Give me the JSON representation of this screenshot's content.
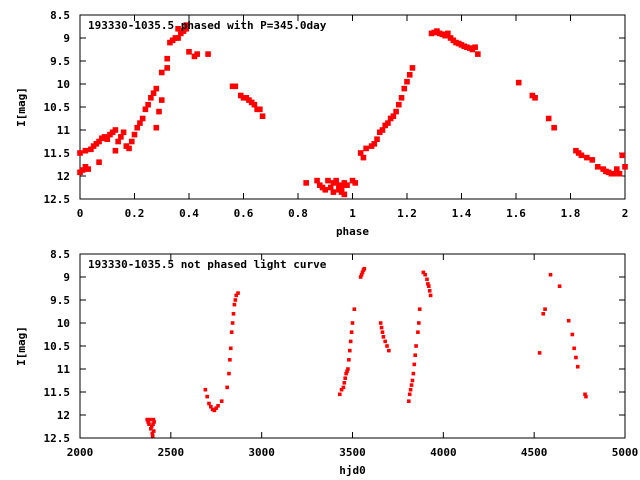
{
  "chart_data": [
    {
      "type": "scatter",
      "title": "193330-1035.5 phased with P=345.0day",
      "xlabel": "phase",
      "ylabel": "I[mag]",
      "xlim": [
        0,
        2
      ],
      "ylim": [
        12.5,
        8.5
      ],
      "y_inverted": true,
      "x_ticks": [
        0,
        0.2,
        0.4,
        0.6,
        0.8,
        1,
        1.2,
        1.4,
        1.6,
        1.8,
        2
      ],
      "x_tick_labels": [
        "0",
        "0.2",
        "0.4",
        "0.6",
        "0.8",
        "1",
        "1.2",
        "1.4",
        "1.6",
        "1.8",
        "2"
      ],
      "y_ticks": [
        8.5,
        9,
        9.5,
        10,
        10.5,
        11,
        11.5,
        12,
        12.5
      ],
      "y_tick_labels": [
        "8.5",
        "9",
        "9.5",
        "10",
        "10.5",
        "11",
        "11.5",
        "12",
        "12.5"
      ],
      "grid": false,
      "marker_color": "#ff0000",
      "points": [
        [
          0.0,
          11.92
        ],
        [
          0.01,
          11.87
        ],
        [
          0.02,
          11.8
        ],
        [
          0.03,
          11.85
        ],
        [
          0.0,
          11.5
        ],
        [
          0.02,
          11.45
        ],
        [
          0.04,
          11.42
        ],
        [
          0.05,
          11.35
        ],
        [
          0.06,
          11.3
        ],
        [
          0.07,
          11.25
        ],
        [
          0.07,
          11.7
        ],
        [
          0.08,
          11.18
        ],
        [
          0.09,
          11.15
        ],
        [
          0.1,
          11.2
        ],
        [
          0.11,
          11.1
        ],
        [
          0.12,
          11.05
        ],
        [
          0.13,
          11.0
        ],
        [
          0.13,
          11.45
        ],
        [
          0.14,
          11.25
        ],
        [
          0.15,
          11.15
        ],
        [
          0.16,
          11.05
        ],
        [
          0.17,
          11.35
        ],
        [
          0.18,
          11.4
        ],
        [
          0.19,
          11.25
        ],
        [
          0.2,
          11.1
        ],
        [
          0.21,
          10.95
        ],
        [
          0.22,
          10.85
        ],
        [
          0.23,
          10.75
        ],
        [
          0.24,
          10.55
        ],
        [
          0.25,
          10.45
        ],
        [
          0.26,
          10.3
        ],
        [
          0.27,
          10.2
        ],
        [
          0.28,
          10.1
        ],
        [
          0.28,
          10.95
        ],
        [
          0.29,
          10.6
        ],
        [
          0.3,
          10.35
        ],
        [
          0.3,
          9.75
        ],
        [
          0.32,
          9.65
        ],
        [
          0.32,
          9.45
        ],
        [
          0.33,
          9.1
        ],
        [
          0.34,
          9.05
        ],
        [
          0.35,
          9.0
        ],
        [
          0.36,
          8.8
        ],
        [
          0.36,
          9.0
        ],
        [
          0.37,
          8.9
        ],
        [
          0.38,
          8.85
        ],
        [
          0.39,
          8.8
        ],
        [
          0.39,
          8.72
        ],
        [
          0.4,
          9.3
        ],
        [
          0.42,
          9.4
        ],
        [
          0.43,
          9.35
        ],
        [
          0.47,
          9.35
        ],
        [
          0.56,
          10.05
        ],
        [
          0.57,
          10.05
        ],
        [
          0.59,
          10.25
        ],
        [
          0.6,
          10.3
        ],
        [
          0.61,
          10.3
        ],
        [
          0.62,
          10.35
        ],
        [
          0.63,
          10.4
        ],
        [
          0.64,
          10.45
        ],
        [
          0.65,
          10.55
        ],
        [
          0.66,
          10.55
        ],
        [
          0.67,
          10.7
        ],
        [
          0.83,
          12.15
        ],
        [
          0.87,
          12.1
        ],
        [
          0.88,
          12.2
        ],
        [
          0.89,
          12.25
        ],
        [
          0.9,
          12.3
        ],
        [
          0.91,
          12.1
        ],
        [
          0.92,
          12.25
        ],
        [
          0.93,
          12.35
        ],
        [
          0.93,
          12.15
        ],
        [
          0.94,
          12.1
        ],
        [
          0.95,
          12.2
        ],
        [
          0.95,
          12.3
        ],
        [
          0.96,
          12.25
        ],
        [
          0.96,
          12.35
        ],
        [
          0.97,
          12.15
        ],
        [
          0.97,
          12.4
        ],
        [
          0.98,
          12.2
        ],
        [
          1.0,
          12.1
        ],
        [
          1.01,
          12.15
        ],
        [
          1.03,
          11.5
        ],
        [
          1.04,
          11.6
        ],
        [
          1.05,
          11.4
        ],
        [
          1.07,
          11.35
        ],
        [
          1.08,
          11.3
        ],
        [
          1.09,
          11.2
        ],
        [
          1.1,
          11.05
        ],
        [
          1.11,
          11.0
        ],
        [
          1.12,
          10.9
        ],
        [
          1.13,
          10.85
        ],
        [
          1.14,
          10.75
        ],
        [
          1.15,
          10.7
        ],
        [
          1.16,
          10.6
        ],
        [
          1.17,
          10.45
        ],
        [
          1.18,
          10.3
        ],
        [
          1.19,
          10.1
        ],
        [
          1.2,
          9.95
        ],
        [
          1.21,
          9.8
        ],
        [
          1.22,
          9.65
        ],
        [
          1.29,
          8.9
        ],
        [
          1.3,
          8.88
        ],
        [
          1.31,
          8.85
        ],
        [
          1.32,
          8.9
        ],
        [
          1.33,
          8.92
        ],
        [
          1.34,
          8.95
        ],
        [
          1.35,
          8.9
        ],
        [
          1.36,
          9.0
        ],
        [
          1.37,
          9.05
        ],
        [
          1.38,
          9.1
        ],
        [
          1.39,
          9.12
        ],
        [
          1.4,
          9.15
        ],
        [
          1.41,
          9.18
        ],
        [
          1.42,
          9.2
        ],
        [
          1.43,
          9.22
        ],
        [
          1.44,
          9.25
        ],
        [
          1.45,
          9.2
        ],
        [
          1.46,
          9.35
        ],
        [
          1.61,
          9.97
        ],
        [
          1.66,
          10.25
        ],
        [
          1.67,
          10.3
        ],
        [
          1.72,
          10.75
        ],
        [
          1.74,
          10.95
        ],
        [
          1.82,
          11.45
        ],
        [
          1.83,
          11.5
        ],
        [
          1.84,
          11.55
        ],
        [
          1.86,
          11.6
        ],
        [
          1.88,
          11.65
        ],
        [
          1.9,
          11.8
        ],
        [
          1.92,
          11.85
        ],
        [
          1.93,
          11.9
        ],
        [
          1.94,
          11.92
        ],
        [
          1.95,
          11.95
        ],
        [
          1.96,
          11.95
        ],
        [
          1.97,
          11.85
        ],
        [
          1.98,
          11.95
        ],
        [
          1.99,
          11.55
        ],
        [
          2.0,
          11.8
        ]
      ]
    },
    {
      "type": "scatter",
      "title": "193330-1035.5 not phased light curve",
      "xlabel": "hjd0",
      "ylabel": "I[mag]",
      "xlim": [
        2000,
        5000
      ],
      "ylim": [
        12.5,
        8.5
      ],
      "y_inverted": true,
      "x_ticks": [
        2000,
        2500,
        3000,
        3500,
        4000,
        4500,
        5000
      ],
      "x_tick_labels": [
        "2000",
        "2500",
        "3000",
        "3500",
        "4000",
        "4500",
        "5000"
      ],
      "y_ticks": [
        8.5,
        9,
        9.5,
        10,
        10.5,
        11,
        11.5,
        12,
        12.5
      ],
      "y_tick_labels": [
        "8.5",
        "9",
        "9.5",
        "10",
        "10.5",
        "11",
        "11.5",
        "12",
        "12.5"
      ],
      "grid": false,
      "marker_color": "#ff0000",
      "points": [
        [
          2370,
          12.1
        ],
        [
          2375,
          12.15
        ],
        [
          2380,
          12.2
        ],
        [
          2385,
          12.1
        ],
        [
          2390,
          12.3
        ],
        [
          2395,
          12.25
        ],
        [
          2398,
          12.4
        ],
        [
          2400,
          12.45
        ],
        [
          2402,
          12.2
        ],
        [
          2404,
          12.1
        ],
        [
          2406,
          12.35
        ],
        [
          2408,
          12.15
        ],
        [
          2690,
          11.45
        ],
        [
          2700,
          11.6
        ],
        [
          2710,
          11.75
        ],
        [
          2720,
          11.82
        ],
        [
          2730,
          11.88
        ],
        [
          2740,
          11.9
        ],
        [
          2750,
          11.85
        ],
        [
          2760,
          11.8
        ],
        [
          2780,
          11.7
        ],
        [
          2810,
          11.4
        ],
        [
          2820,
          11.1
        ],
        [
          2825,
          10.8
        ],
        [
          2830,
          10.55
        ],
        [
          2835,
          10.2
        ],
        [
          2840,
          10.0
        ],
        [
          2845,
          9.8
        ],
        [
          2850,
          9.6
        ],
        [
          2855,
          9.5
        ],
        [
          2860,
          9.4
        ],
        [
          2870,
          9.35
        ],
        [
          3430,
          11.55
        ],
        [
          3440,
          11.45
        ],
        [
          3450,
          11.4
        ],
        [
          3455,
          11.3
        ],
        [
          3460,
          11.2
        ],
        [
          3465,
          11.1
        ],
        [
          3470,
          11.05
        ],
        [
          3475,
          11.0
        ],
        [
          3480,
          10.8
        ],
        [
          3485,
          10.6
        ],
        [
          3490,
          10.4
        ],
        [
          3495,
          10.2
        ],
        [
          3500,
          10.0
        ],
        [
          3510,
          9.7
        ],
        [
          3545,
          9.0
        ],
        [
          3550,
          8.95
        ],
        [
          3555,
          8.9
        ],
        [
          3560,
          8.85
        ],
        [
          3565,
          8.82
        ],
        [
          3655,
          10.0
        ],
        [
          3660,
          10.1
        ],
        [
          3665,
          10.2
        ],
        [
          3670,
          10.3
        ],
        [
          3680,
          10.4
        ],
        [
          3690,
          10.5
        ],
        [
          3700,
          10.6
        ],
        [
          3810,
          11.7
        ],
        [
          3815,
          11.55
        ],
        [
          3820,
          11.45
        ],
        [
          3825,
          11.35
        ],
        [
          3830,
          11.25
        ],
        [
          3835,
          11.1
        ],
        [
          3840,
          10.9
        ],
        [
          3845,
          10.7
        ],
        [
          3850,
          10.5
        ],
        [
          3860,
          10.2
        ],
        [
          3865,
          10.0
        ],
        [
          3870,
          9.7
        ],
        [
          3890,
          8.9
        ],
        [
          3900,
          8.95
        ],
        [
          3910,
          9.05
        ],
        [
          3915,
          9.15
        ],
        [
          3920,
          9.2
        ],
        [
          3925,
          9.3
        ],
        [
          3930,
          9.4
        ],
        [
          4530,
          10.65
        ],
        [
          4550,
          9.8
        ],
        [
          4560,
          9.7
        ],
        [
          4590,
          8.95
        ],
        [
          4640,
          9.2
        ],
        [
          4690,
          9.95
        ],
        [
          4710,
          10.25
        ],
        [
          4720,
          10.55
        ],
        [
          4730,
          10.75
        ],
        [
          4740,
          10.95
        ],
        [
          4780,
          11.55
        ],
        [
          4785,
          11.6
        ]
      ]
    }
  ]
}
